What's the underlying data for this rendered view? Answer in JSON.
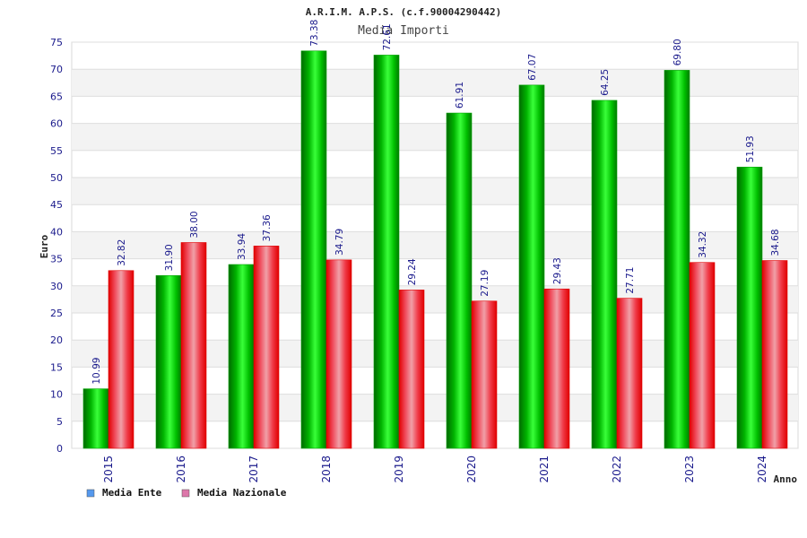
{
  "chart_data": {
    "type": "bar",
    "title": "A.R.I.M. A.P.S. (c.f.90004290442)",
    "subtitle": "Media Importi",
    "xlabel": "Anno",
    "ylabel": "Euro",
    "categories": [
      "2015",
      "2016",
      "2017",
      "2018",
      "2019",
      "2020",
      "2021",
      "2022",
      "2023",
      "2024"
    ],
    "series": [
      {
        "name": "Media Ente",
        "values": [
          10.99,
          31.9,
          33.94,
          73.38,
          72.61,
          61.91,
          67.07,
          64.25,
          69.8,
          51.93
        ],
        "labels": [
          "10.99",
          "31.90",
          "33.94",
          "73.38",
          "72.61",
          "61.91",
          "67.07",
          "64.25",
          "69.80",
          "51.93"
        ],
        "color": "#00a800",
        "legend_color": "#5599ee"
      },
      {
        "name": "Media Nazionale",
        "values": [
          32.82,
          38.0,
          37.36,
          34.79,
          29.24,
          27.19,
          29.43,
          27.71,
          34.32,
          34.68
        ],
        "labels": [
          "32.82",
          "38.00",
          "37.36",
          "34.79",
          "29.24",
          "27.19",
          "29.43",
          "27.71",
          "34.32",
          "34.68"
        ],
        "color": "#ee0000",
        "legend_color": "#dd77aa"
      }
    ],
    "ylim": [
      0,
      75
    ],
    "yticks": [
      0,
      5,
      10,
      15,
      20,
      25,
      30,
      35,
      40,
      45,
      50,
      55,
      60,
      65,
      70,
      75
    ],
    "grid": true,
    "legend_position": "bottom-left"
  }
}
